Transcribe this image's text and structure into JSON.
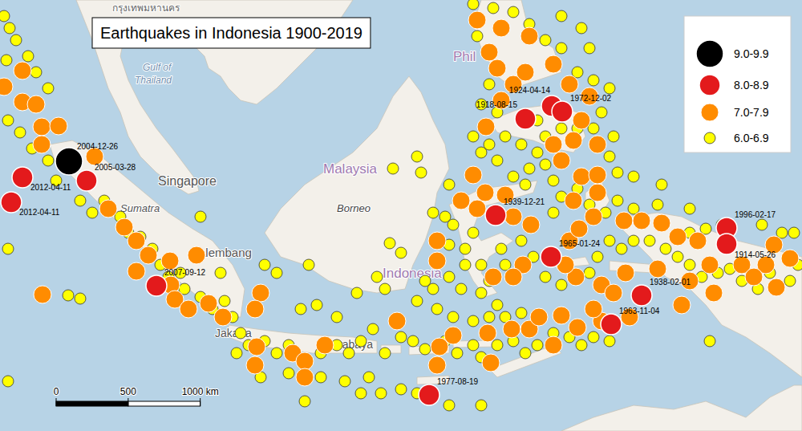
{
  "chart_data": {
    "type": "scatter",
    "title": "Earthquakes in Indonesia 1900-2019",
    "xlim": [
      91.7,
      141.7
    ],
    "ylim": [
      -13.5,
      13.35
    ],
    "tick_labels": false,
    "legend": "upper right",
    "series": [
      {
        "name": "9.0-9.9",
        "color": "#000000",
        "x": [
          96.0
        ],
        "y": [
          3.3
        ],
        "labels": [
          "2004-12-26"
        ]
      },
      {
        "name": "8.0-8.9",
        "color": "#e31a1c",
        "x": [
          97.1,
          93.1,
          92.4,
          101.45,
          124.45,
          126.1,
          126.75,
          122.6,
          126.05,
          131.7,
          129.8,
          137.0,
          137.0,
          118.45
        ],
        "y": [
          2.1,
          2.3,
          0.75,
          -4.45,
          5.95,
          6.75,
          6.4,
          -0.05,
          -2.65,
          -5.05,
          -6.85,
          -0.85,
          -1.85,
          -11.25
        ],
        "labels": [
          "2005-03-28",
          "2012-04-11",
          "2012-04-11",
          "2007-09-12",
          "1918-08-15",
          "1924-04-14",
          "1972-12-02",
          "1939-12-21",
          "1965-01-24",
          "1938-02-01",
          "1963-11-04",
          "1996-02-17",
          "1914-05-26",
          "1977-08-19"
        ]
      },
      {
        "name": "7.0-7.9",
        "color": "#ff8c00",
        "x": [
          91.95,
          93.1,
          93.1,
          93.95,
          94.3,
          95.35,
          94.3,
          97.6,
          98.45,
          99.45,
          100.2,
          100.95,
          102.3,
          103.95,
          102.35,
          102.6,
          103.45,
          100.2,
          94.35,
          105.6,
          104.7,
          107.95,
          107.6,
          107.7,
          107.6,
          109.95,
          110.7,
          110.7,
          111.95,
          116.45,
          118.95,
          119.95,
          122.1,
          123.6,
          124.7,
          125.3,
          126.7,
          126.2,
          127.7,
          129.2,
          130.95,
          122.3,
          119.1,
          118.95,
          118.95,
          121.2,
          120.45,
          121.45,
          121.95,
          123.2,
          123.7,
          124.8,
          124.3,
          123.7,
          127.2,
          127.8,
          128.7,
          127.45,
          128.95,
          127.95,
          128.95,
          126.7,
          127.45,
          126.2,
          122.0,
          122.95,
          123.7,
          122.2,
          122.7,
          124.45,
          126.2,
          127.2,
          128.45,
          127.95,
          128.95,
          124.7,
          121.45,
          122.95,
          130.6,
          131.7,
          132.95,
          133.95,
          135.2,
          135.95,
          137.95,
          139.95,
          139.45,
          140.95,
          140.1,
          138.7,
          136.2,
          134.7,
          134.2,
          132.7,
          130.7,
          129.2,
          128.7,
          129.95,
          127.6,
          126.95,
          122.45
        ],
        "y": [
          7.95,
          8.95,
          7.0,
          6.85,
          5.45,
          5.5,
          4.35,
          3.6,
          0.35,
          -0.8,
          -1.65,
          -2.55,
          -2.9,
          -2.55,
          -4.4,
          -5.3,
          -5.9,
          -3.55,
          -5.0,
          -6.4,
          -5.55,
          -4.9,
          -5.9,
          -8.25,
          -9.4,
          -8.65,
          -9.15,
          -10.15,
          -8.15,
          -6.65,
          -9.4,
          -7.55,
          -7.4,
          -7.15,
          -7.15,
          -6.4,
          -6.3,
          -8.15,
          -7.05,
          -6.65,
          -6.4,
          -9.25,
          -8.25,
          -2.9,
          -1.65,
          2.45,
          0.85,
          0.35,
          1.35,
          1.2,
          -0.15,
          -0.65,
          -3.15,
          -3.9,
          -1.65,
          -0.9,
          -0.15,
          0.85,
          1.35,
          2.35,
          2.45,
          3.35,
          4.6,
          4.35,
          5.45,
          7.1,
          8.1,
          10.1,
          9.1,
          8.85,
          9.35,
          8.1,
          7.35,
          5.85,
          4.35,
          11.1,
          12.1,
          11.6,
          -0.4,
          -0.4,
          -0.55,
          -1.4,
          -1.65,
          -3.15,
          -3.15,
          -1.9,
          -3.15,
          -2.75,
          -4.55,
          -3.9,
          -4.9,
          -4.15,
          -5.65,
          -3.4,
          -3.65,
          -4.4,
          -5.9,
          -4.9,
          -3.9,
          -3.15,
          -3.9
        ]
      },
      {
        "name": "6.0-6.9",
        "color": "#ffff00",
        "x": [
          91.95,
          92.3,
          92.7,
          92.1,
          93.45,
          93.95,
          94.7,
          92.2,
          92.95,
          93.7,
          94.7,
          95.2,
          96.7,
          97.45,
          98.2,
          99.2,
          99.7,
          100.45,
          101.2,
          101.7,
          102.2,
          102.95,
          103.2,
          104.2,
          104.95,
          105.7,
          106.2,
          106.7,
          107.2,
          106.45,
          108.2,
          108.95,
          109.7,
          110.45,
          111.45,
          111.7,
          112.7,
          113.45,
          114.2,
          114.95,
          115.7,
          116.7,
          117.45,
          118.2,
          119.45,
          120.2,
          121.2,
          121.7,
          122.7,
          123.7,
          124.45,
          125.2,
          126.2,
          127.2,
          127.95,
          128.7,
          129.7,
          114.2,
          115.45,
          116.7,
          117.7,
          119.7,
          121.7,
          110.7,
          107.95,
          92.2,
          92.2,
          95.95,
          96.7,
          121.7,
          122.7,
          122.2,
          122.95,
          123.2,
          124.2,
          124.95,
          125.7,
          126.7,
          128.45,
          128.95,
          129.7,
          130.45,
          131.2,
          132.2,
          133.2,
          133.95,
          134.7,
          135.45,
          136.45,
          137.2,
          137.95,
          138.95,
          139.7,
          140.95,
          141.45,
          136.7,
          135.7,
          134.7,
          131.2,
          130.2,
          129.45,
          126.2,
          126.7,
          127.7,
          128.45,
          126.2,
          125.7,
          125.2,
          124.7,
          124.45,
          123.7,
          122.7,
          121.7,
          121.2,
          122.2,
          123.2,
          124.2,
          125.2,
          125.7,
          126.7,
          127.7,
          128.7,
          129.2,
          128.7,
          127.7,
          126.7,
          125.7,
          124.7,
          123.7,
          122.45,
          121.2,
          121.45,
          122.2,
          121.7,
          122.7,
          127.95,
          126.7,
          128.45,
          129.7,
          129.95,
          129.7,
          130.2,
          131.2,
          132.95,
          135.95,
          141.2,
          116.7,
          115.2,
          115.7,
          113.95,
          112.7,
          108.2,
          108.95,
          116.2,
          117.7,
          117.95,
          117.7,
          118.2,
          119.7,
          120.45,
          119.7,
          119.95,
          119.45,
          119.7,
          118.7,
          120.7,
          121.2,
          120.7,
          121.7,
          118.7,
          118.95,
          119.95,
          121.2,
          122.2,
          123.2,
          124.2,
          116.0,
          110.95,
          104.2,
          105.45,
          111.7,
          109.7,
          113.2,
          114.7,
          132.7,
          134.7,
          139.2,
          140.45
        ],
        "y": [
          12.35,
          11.6,
          10.85,
          9.6,
          9.85,
          8.85,
          7.85,
          5.85,
          5.1,
          4.1,
          3.35,
          2.1,
          0.85,
          0.1,
          0.85,
          -0.15,
          -1.15,
          -1.4,
          -2.15,
          -3.15,
          -3.9,
          -3.65,
          -4.65,
          -5.15,
          -5.9,
          -5.4,
          -6.4,
          -7.4,
          -8.15,
          -8.65,
          -7.9,
          -8.65,
          -8.15,
          -5.9,
          -5.65,
          -8.65,
          -8.15,
          -8.65,
          -7.9,
          -7.15,
          -8.65,
          -7.65,
          -7.9,
          -8.4,
          -7.9,
          -8.65,
          -8.15,
          -8.9,
          -8.15,
          -7.9,
          -8.65,
          -8.15,
          -7.4,
          -7.65,
          -8.15,
          -7.65,
          -7.9,
          -11.15,
          -11.15,
          -10.9,
          -11.15,
          -11.9,
          -11.9,
          -11.65,
          -10.15,
          -2.15,
          -10.4,
          -5.05,
          -5.25,
          -4.9,
          -5.65,
          -4.15,
          -2.15,
          -3.15,
          -1.65,
          -2.65,
          -3.9,
          -4.4,
          -3.65,
          -2.65,
          -1.65,
          -2.15,
          -1.65,
          -1.65,
          -2.15,
          -2.65,
          -3.15,
          -3.9,
          -3.65,
          -3.4,
          -4.15,
          -4.65,
          -3.65,
          -4.15,
          -3.15,
          -0.65,
          -0.9,
          -1.15,
          0.35,
          0.85,
          0.1,
          0.1,
          1.1,
          1.6,
          0.6,
          2.1,
          3.1,
          3.85,
          2.85,
          1.85,
          2.35,
          3.35,
          3.85,
          4.85,
          4.35,
          4.85,
          4.35,
          5.85,
          4.85,
          5.35,
          5.35,
          5.35,
          6.35,
          8.35,
          8.85,
          10.35,
          10.85,
          11.85,
          12.6,
          12.85,
          13.1,
          11.1,
          8.1,
          6.85,
          6.35,
          11.6,
          12.35,
          10.35,
          7.85,
          4.85,
          3.6,
          2.6,
          2.35,
          1.85,
          -7.9,
          -1.15,
          -2.4,
          -3.9,
          -4.65,
          -4.9,
          -6.4,
          -3.15,
          -3.65,
          2.85,
          3.6,
          2.6,
          -5.4,
          -4.15,
          -3.9,
          -4.65,
          -1.9,
          -0.65,
          -0.15,
          1.85,
          0.1,
          -2.15,
          -1.15,
          -3.15,
          -3.15,
          -4.65,
          -5.9,
          -6.4,
          -6.65,
          -6.4,
          -6.4,
          -6.15,
          -1.8,
          -3.15,
          -0.15,
          -3.65,
          -10.15,
          -9.9,
          -10.4,
          -10.15,
          0.6,
          0.35,
          -0.65,
          -1.15
        ]
      }
    ],
    "scale_bar": {
      "ticks": [
        0,
        500,
        {
          "value": 1000,
          "label": "1000 km"
        }
      ]
    },
    "map_labels": [
      "กรุงเทพมหานคร",
      "Gulf of",
      "Thailand",
      "Singapore",
      "Malaysia",
      "Borneo",
      "Indonesia",
      "Sumatra",
      "Palembang",
      "Jakarta",
      "Surabaya",
      "Phil"
    ]
  }
}
